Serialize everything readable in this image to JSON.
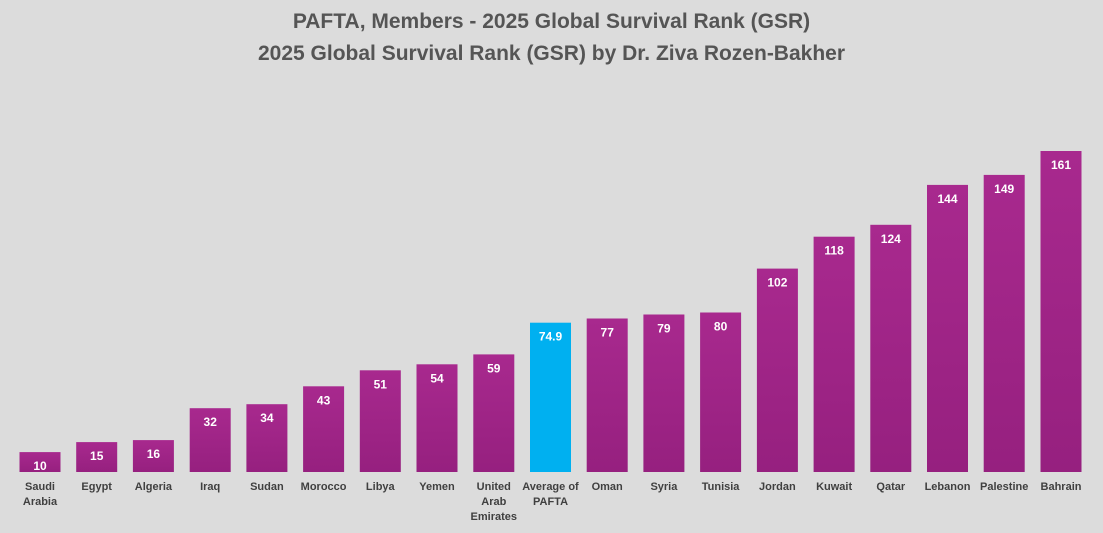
{
  "chart_data": {
    "type": "bar",
    "title": "PAFTA, Members -  2025 Global Survival Rank (GSR)",
    "subtitle": "2025 Global Survival Rank (GSR) by Dr. Ziva Rozen-Bakher",
    "xlabel": "",
    "ylabel": "",
    "ylim": [
      0,
      161
    ],
    "grid": false,
    "categories": [
      "Saudi Arabia",
      "Egypt",
      "Algeria",
      "Iraq",
      "Sudan",
      "Morocco",
      "Libya",
      "Yemen",
      "United Arab Emirates",
      "Average of PAFTA",
      "Oman",
      "Syria",
      "Tunisia",
      "Jordan",
      "Kuwait",
      "Qatar",
      "Lebanon",
      "Palestine",
      "Bahrain"
    ],
    "values": [
      10,
      15,
      16,
      32,
      34,
      43,
      51,
      54,
      59,
      74.9,
      77,
      79,
      80,
      102,
      118,
      124,
      144,
      149,
      161
    ],
    "category_lines": [
      [
        "Saudi",
        "Arabia"
      ],
      [
        "Egypt"
      ],
      [
        "Algeria"
      ],
      [
        "Iraq"
      ],
      [
        "Sudan"
      ],
      [
        "Morocco"
      ],
      [
        "Libya"
      ],
      [
        "Yemen"
      ],
      [
        "United",
        "Arab",
        "Emirates"
      ],
      [
        "Average of",
        "PAFTA"
      ],
      [
        "Oman"
      ],
      [
        "Syria"
      ],
      [
        "Tunisia"
      ],
      [
        "Jordan"
      ],
      [
        "Kuwait"
      ],
      [
        "Qatar"
      ],
      [
        "Lebanon"
      ],
      [
        "Palestine"
      ],
      [
        "Bahrain"
      ]
    ],
    "highlight_category": "Average of PAFTA",
    "colors": {
      "bar": "#96207f",
      "bar_light": "#a8298e",
      "highlight": "#00b0f0",
      "value_label": "#ffffff",
      "category_label": "#404040"
    }
  }
}
